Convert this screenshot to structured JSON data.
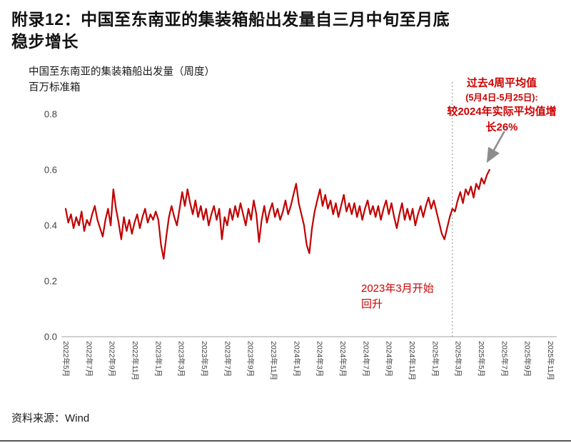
{
  "page": {
    "title_line1": "附录12：中国至东南亚的集装箱船出发量自三月中旬至月底",
    "title_line2": "稳步增长",
    "source": "资料来源：Wind"
  },
  "colors": {
    "line_red": "#c00000",
    "annotation_red": "#cc0000",
    "axis_gray": "#b3b3b3",
    "tick_label_gray": "#404040",
    "dashed_gray": "#8c8c8c",
    "arrow_gray": "#8c8c8c"
  },
  "chart_data": {
    "type": "line",
    "title": "中国至东南亚的集装箱船出发量（周度）",
    "ylabel": "百万标准箱",
    "series_name": "中国至东南亚集装箱船出发量（周度）",
    "frequency": "weekly",
    "x_start": "2022-05-01",
    "x_end": "2025-05-25",
    "ylim": [
      0,
      0.8
    ],
    "grid": false,
    "legend_position": "none",
    "y_ticks": [
      "0.0",
      "0.2",
      "0.4",
      "0.6",
      "0.8"
    ],
    "x_tick_labels": [
      "2022年5月",
      "2022年7月",
      "2022年9月",
      "2022年11月",
      "2023年1月",
      "2023年3月",
      "2023年5月",
      "2023年7月",
      "2023年9月",
      "2023年11月",
      "2024年1月",
      "2024年3月",
      "2024年5月",
      "2024年7月",
      "2024年9月",
      "2024年11月",
      "2025年1月",
      "2025年3月",
      "2025年5月",
      "2025年7月",
      "2025年9月",
      "2025年11月"
    ],
    "values": [
      0.46,
      0.41,
      0.44,
      0.39,
      0.43,
      0.4,
      0.45,
      0.38,
      0.42,
      0.4,
      0.44,
      0.47,
      0.42,
      0.39,
      0.36,
      0.42,
      0.46,
      0.4,
      0.53,
      0.46,
      0.41,
      0.35,
      0.43,
      0.38,
      0.42,
      0.37,
      0.41,
      0.44,
      0.39,
      0.43,
      0.46,
      0.41,
      0.44,
      0.42,
      0.45,
      0.42,
      0.33,
      0.28,
      0.36,
      0.43,
      0.47,
      0.43,
      0.4,
      0.46,
      0.52,
      0.47,
      0.53,
      0.48,
      0.44,
      0.49,
      0.43,
      0.47,
      0.42,
      0.46,
      0.4,
      0.44,
      0.47,
      0.42,
      0.46,
      0.35,
      0.43,
      0.4,
      0.46,
      0.42,
      0.47,
      0.43,
      0.48,
      0.44,
      0.4,
      0.46,
      0.42,
      0.49,
      0.44,
      0.34,
      0.42,
      0.47,
      0.41,
      0.45,
      0.48,
      0.43,
      0.46,
      0.42,
      0.45,
      0.49,
      0.44,
      0.47,
      0.51,
      0.55,
      0.48,
      0.44,
      0.4,
      0.33,
      0.3,
      0.39,
      0.45,
      0.49,
      0.53,
      0.47,
      0.51,
      0.46,
      0.49,
      0.44,
      0.48,
      0.43,
      0.47,
      0.51,
      0.45,
      0.48,
      0.44,
      0.48,
      0.43,
      0.47,
      0.42,
      0.46,
      0.49,
      0.44,
      0.47,
      0.43,
      0.47,
      0.42,
      0.46,
      0.49,
      0.44,
      0.48,
      0.43,
      0.39,
      0.44,
      0.48,
      0.42,
      0.46,
      0.42,
      0.46,
      0.4,
      0.44,
      0.47,
      0.43,
      0.47,
      0.5,
      0.46,
      0.49,
      0.45,
      0.41,
      0.37,
      0.35,
      0.39,
      0.43,
      0.46,
      0.45,
      0.49,
      0.52,
      0.48,
      0.53,
      0.51,
      0.54,
      0.5,
      0.55,
      0.53,
      0.57,
      0.55,
      0.58,
      0.6
    ],
    "dashed_line_week": 146,
    "annotations": {
      "callout_line1": "过去4周平均值",
      "callout_line2": "(5月4日-5月25日):",
      "callout_line3": "较2024年实际平均值增长26%",
      "note": "2023年3月开始回升"
    }
  }
}
